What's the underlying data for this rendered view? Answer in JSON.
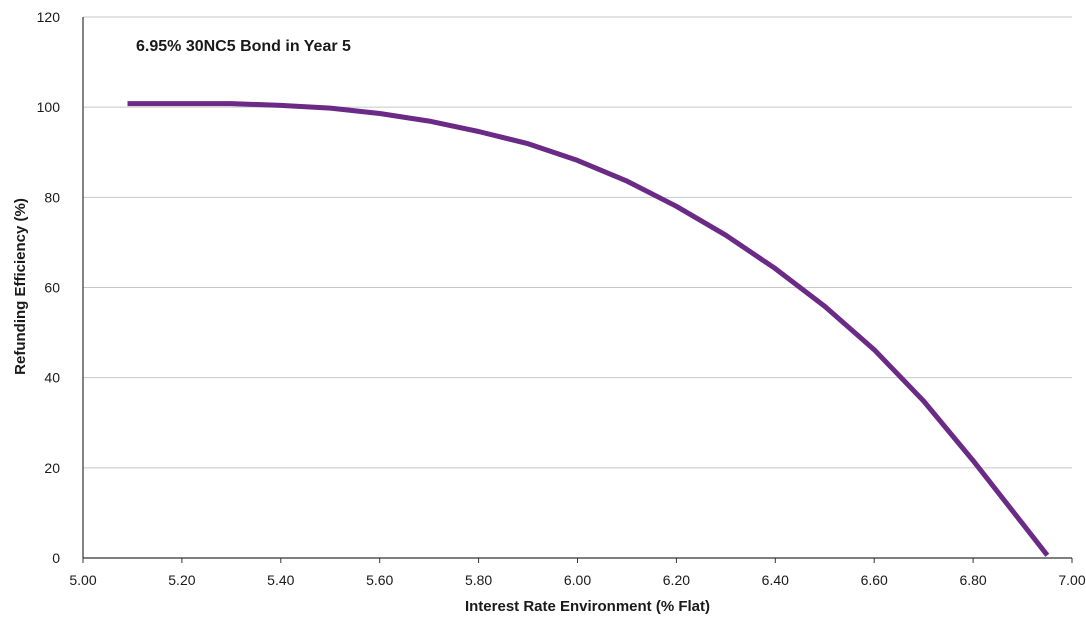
{
  "chart_data": {
    "type": "line",
    "title": "6.95% 30NC5 Bond in Year 5",
    "xlabel": "Interest Rate Environment (% Flat)",
    "ylabel": "Refunding Efficiency (%)",
    "xlim": [
      5.0,
      7.0
    ],
    "ylim": [
      0,
      120
    ],
    "x_ticks": [
      "5.00",
      "5.20",
      "5.40",
      "5.60",
      "5.80",
      "6.00",
      "6.20",
      "6.40",
      "6.60",
      "6.80",
      "7.00"
    ],
    "y_ticks": [
      "0",
      "20",
      "40",
      "60",
      "80",
      "100",
      "120"
    ],
    "grid": "horizontal",
    "colors": {
      "line": "#6a2a86",
      "grid": "#c8c8c8",
      "axis": "#333333"
    },
    "series": [
      {
        "x": [
          5.09,
          5.2,
          5.3,
          5.4,
          5.5,
          5.6,
          5.7,
          5.8,
          5.9,
          6.0,
          6.1,
          6.2,
          6.3,
          6.4,
          6.5,
          6.6,
          6.7,
          6.8,
          6.9,
          6.95
        ],
        "y": [
          100.8,
          100.8,
          100.8,
          100.4,
          99.8,
          98.6,
          96.9,
          94.6,
          91.9,
          88.2,
          83.6,
          78.0,
          71.6,
          64.2,
          55.8,
          46.2,
          34.8,
          21.6,
          7.6,
          0.6
        ]
      }
    ]
  }
}
